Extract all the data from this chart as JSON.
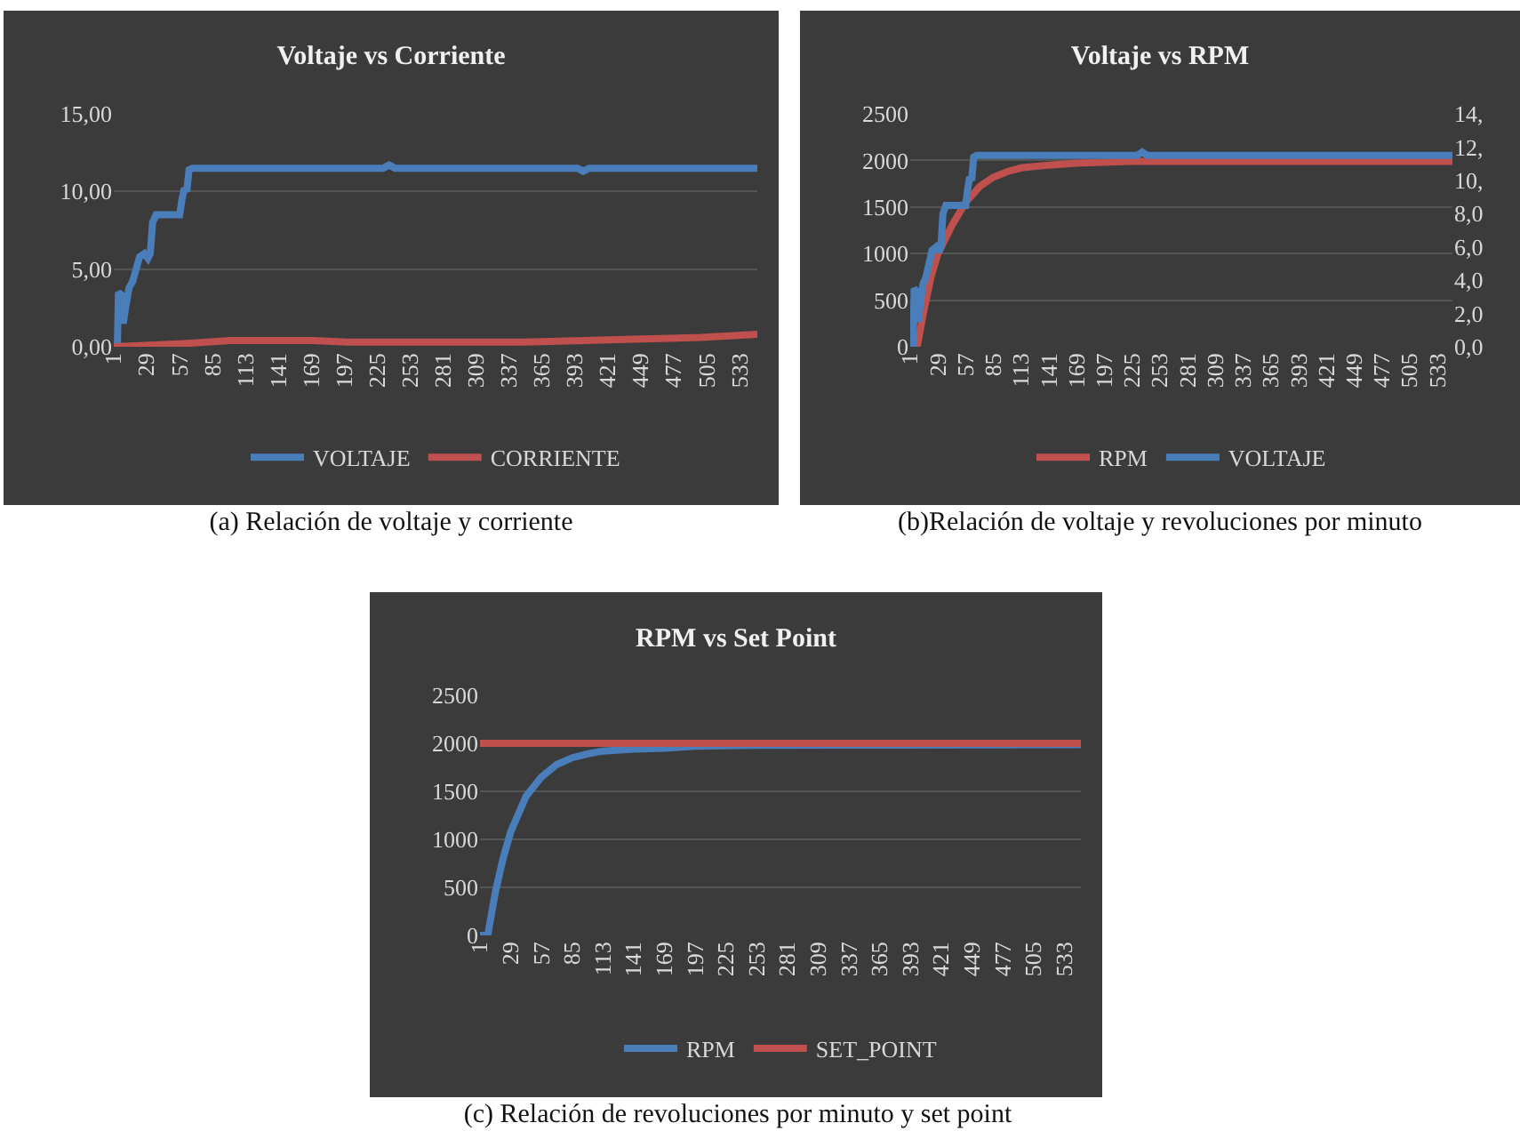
{
  "chart_data": [
    {
      "type": "line",
      "title": "Voltaje vs Corriente",
      "annotations": [
        "(a) Relación de voltaje y corriente"
      ],
      "xlim": [
        1,
        548
      ],
      "xticks": [
        1,
        29,
        57,
        85,
        113,
        141,
        169,
        197,
        225,
        253,
        281,
        309,
        337,
        365,
        393,
        421,
        449,
        477,
        505,
        533
      ],
      "ylim": [
        0,
        15
      ],
      "yticks": [
        {
          "value": 0,
          "label": "0,00"
        },
        {
          "value": 5,
          "label": "5,00"
        },
        {
          "value": 10,
          "label": "10,00"
        },
        {
          "value": 15,
          "label": "15,00"
        }
      ],
      "grid": "y",
      "legend": "bottom",
      "series": [
        {
          "name": "VOLTAJE",
          "color": "#4a7ebb",
          "x": [
            1,
            4,
            5,
            8,
            9,
            11,
            14,
            17,
            20,
            23,
            27,
            30,
            32,
            34,
            37,
            57,
            59,
            61,
            63,
            65,
            68,
            230,
            235,
            240,
            395,
            400,
            405,
            548
          ],
          "values": [
            0,
            0,
            3.5,
            3.3,
            1.5,
            2.5,
            3.8,
            4.2,
            5,
            5.8,
            6,
            5.7,
            6,
            8,
            8.5,
            8.5,
            9.5,
            10.2,
            10,
            11.4,
            11.5,
            11.5,
            11.7,
            11.5,
            11.5,
            11.3,
            11.5,
            11.5
          ]
        },
        {
          "name": "CORRIENTE",
          "color": "#c0504d",
          "x": [
            1,
            60,
            100,
            140,
            170,
            200,
            300,
            350,
            400,
            450,
            500,
            548
          ],
          "values": [
            0,
            0.2,
            0.4,
            0.4,
            0.4,
            0.3,
            0.3,
            0.3,
            0.4,
            0.5,
            0.6,
            0.8
          ]
        }
      ]
    },
    {
      "type": "line",
      "title": "Voltaje vs RPM",
      "annotations": [
        "(b)Relación de voltaje y revoluciones por minuto"
      ],
      "xlim": [
        1,
        548
      ],
      "xticks": [
        1,
        29,
        57,
        85,
        113,
        141,
        169,
        197,
        225,
        253,
        281,
        309,
        337,
        365,
        393,
        421,
        449,
        477,
        505,
        533
      ],
      "ylim": [
        0,
        2500
      ],
      "yticks": [
        0,
        500,
        1000,
        1500,
        2000,
        2500
      ],
      "y2lim": [
        0,
        14
      ],
      "y2ticks": [
        {
          "value": 0,
          "label": "0,0"
        },
        {
          "value": 2,
          "label": "2,0"
        },
        {
          "value": 4,
          "label": "4,0"
        },
        {
          "value": 6,
          "label": "6,0"
        },
        {
          "value": 8,
          "label": "8,0"
        },
        {
          "value": 10,
          "label": "10,"
        },
        {
          "value": 12,
          "label": "12,"
        },
        {
          "value": 14,
          "label": "14,"
        }
      ],
      "grid": "y",
      "legend": "bottom",
      "series": [
        {
          "name": "RPM",
          "color": "#c0504d",
          "x": [
            1,
            8,
            15,
            22,
            29,
            43,
            57,
            71,
            85,
            99,
            113,
            141,
            169,
            225,
            548
          ],
          "values": [
            0,
            0,
            400,
            750,
            1000,
            1300,
            1550,
            1720,
            1820,
            1880,
            1920,
            1950,
            1970,
            1990,
            1990
          ]
        },
        {
          "name": "VOLTAJE",
          "color": "#4a7ebb",
          "axis": "y2",
          "x": [
            1,
            4,
            5,
            8,
            9,
            11,
            14,
            17,
            20,
            23,
            27,
            30,
            32,
            34,
            37,
            57,
            59,
            61,
            63,
            65,
            68,
            230,
            235,
            240,
            548
          ],
          "values": [
            0,
            0,
            3.5,
            3.3,
            1.5,
            2.5,
            3.8,
            4.2,
            5,
            5.8,
            6,
            5.7,
            6,
            8,
            8.5,
            8.5,
            9.5,
            10.2,
            10,
            11.4,
            11.5,
            11.5,
            11.7,
            11.5,
            11.5
          ]
        }
      ]
    },
    {
      "type": "line",
      "title": "RPM vs Set Point",
      "annotations": [
        "(c) Relación de revoluciones por minuto y set point"
      ],
      "xlim": [
        1,
        548
      ],
      "xticks": [
        1,
        29,
        57,
        85,
        113,
        141,
        169,
        197,
        225,
        253,
        281,
        309,
        337,
        365,
        393,
        421,
        449,
        477,
        505,
        533
      ],
      "ylim": [
        0,
        2500
      ],
      "yticks": [
        0,
        500,
        1000,
        1500,
        2000,
        2500
      ],
      "grid": "y",
      "legend": "bottom",
      "series": [
        {
          "name": "RPM",
          "color": "#4a7ebb",
          "x": [
            1,
            8,
            15,
            22,
            29,
            43,
            57,
            71,
            85,
            99,
            113,
            141,
            169,
            197,
            250,
            548
          ],
          "values": [
            0,
            0,
            450,
            800,
            1080,
            1450,
            1650,
            1780,
            1850,
            1890,
            1920,
            1940,
            1950,
            1970,
            1980,
            1985
          ]
        },
        {
          "name": "SET_POINT",
          "color": "#c0504d",
          "x": [
            1,
            548
          ],
          "values": [
            2000,
            2000
          ]
        }
      ]
    }
  ]
}
